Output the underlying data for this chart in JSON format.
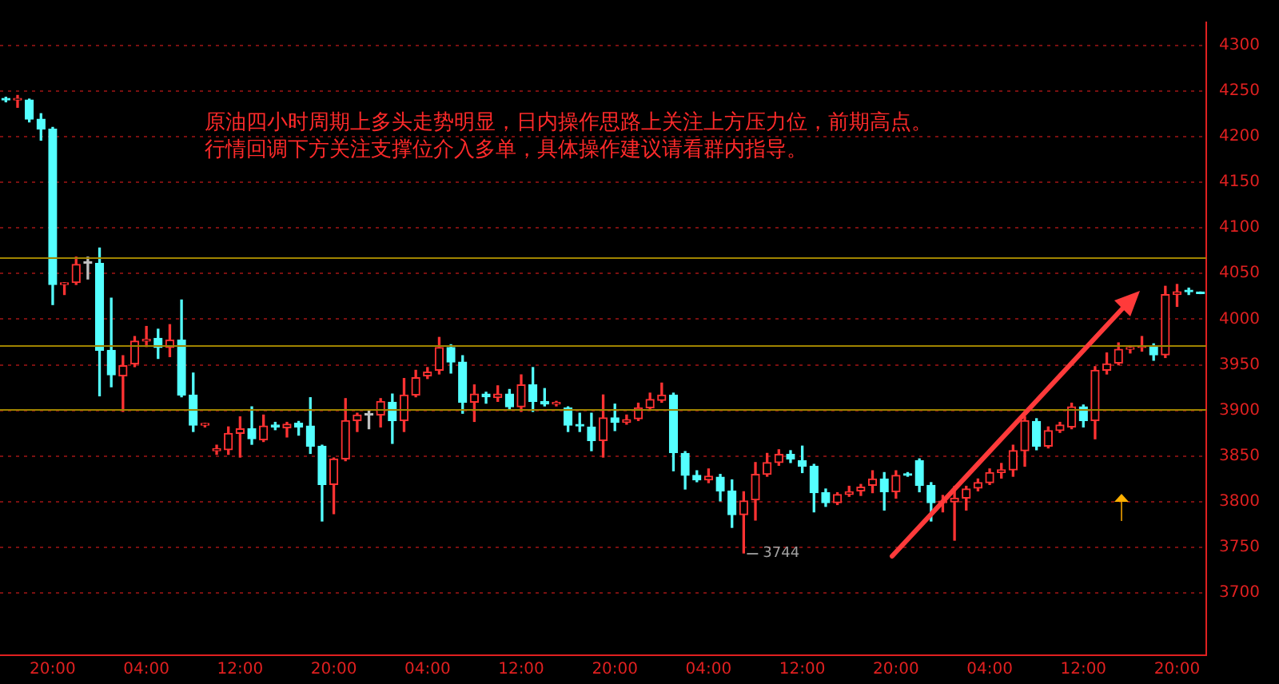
{
  "chart_data": {
    "type": "candlestick",
    "categories": [
      null,
      null,
      null,
      null,
      "20:00",
      null,
      null,
      null,
      null,
      null,
      null,
      null,
      "04:00",
      null,
      null,
      null,
      null,
      null,
      null,
      null,
      "12:00",
      null,
      null,
      null,
      null,
      null,
      null,
      null,
      "20:00",
      null,
      null,
      null,
      null,
      null,
      null,
      null,
      "04:00",
      null,
      null,
      null,
      null,
      null,
      null,
      null,
      "12:00",
      null,
      null,
      null,
      null,
      null,
      null,
      null,
      "20:00",
      null,
      null,
      null,
      null,
      null,
      null,
      null,
      "04:00",
      null,
      null,
      null,
      null,
      null,
      null,
      null,
      "12:00",
      null,
      null,
      null,
      null,
      null,
      null,
      null,
      "20:00",
      null,
      null,
      null,
      null,
      null,
      null,
      null,
      "04:00",
      null,
      null,
      null,
      null,
      null,
      null,
      null,
      "12:00",
      null,
      null,
      null,
      null,
      null,
      null,
      null,
      "20:00",
      null,
      null
    ],
    "ohlc": [
      [
        4241,
        4243,
        4238,
        4240
      ],
      [
        4240,
        4245,
        4232,
        4241
      ],
      [
        4240,
        4241,
        4216,
        4219
      ],
      [
        4219,
        4225,
        4196,
        4208
      ],
      [
        4208,
        4210,
        4016,
        4038
      ],
      [
        4038,
        4040,
        4027,
        4039
      ],
      [
        4040,
        4068,
        4038,
        4060
      ],
      [
        4061,
        4068,
        4044,
        4061
      ],
      [
        4061,
        4078,
        3916,
        3966
      ],
      [
        3966,
        4023,
        3926,
        3939
      ],
      [
        3938,
        3960,
        3899,
        3949
      ],
      [
        3951,
        3981,
        3948,
        3976
      ],
      [
        3976,
        3992,
        3970,
        3978
      ],
      [
        3979,
        3989,
        3957,
        3969
      ],
      [
        3969,
        3994,
        3959,
        3977
      ],
      [
        3977,
        4021,
        3915,
        3917
      ],
      [
        3917,
        3941,
        3877,
        3884
      ],
      [
        3884,
        3886,
        3882,
        3885
      ],
      [
        3856,
        3862,
        3852,
        3858
      ],
      [
        3857,
        3882,
        3852,
        3875
      ],
      [
        3875,
        3893,
        3849,
        3880
      ],
      [
        3880,
        3904,
        3863,
        3869
      ],
      [
        3868,
        3895,
        3866,
        3883
      ],
      [
        3884,
        3887,
        3879,
        3882
      ],
      [
        3881,
        3887,
        3871,
        3885
      ],
      [
        3886,
        3888,
        3873,
        3882
      ],
      [
        3883,
        3914,
        3853,
        3861
      ],
      [
        3861,
        3862,
        3779,
        3819
      ],
      [
        3819,
        3848,
        3787,
        3847
      ],
      [
        3847,
        3913,
        3845,
        3889
      ],
      [
        3889,
        3897,
        3877,
        3895
      ],
      [
        3895,
        3900,
        3880,
        3895
      ],
      [
        3895,
        3913,
        3882,
        3910
      ],
      [
        3909,
        3918,
        3864,
        3889
      ],
      [
        3889,
        3935,
        3877,
        3917
      ],
      [
        3917,
        3944,
        3915,
        3936
      ],
      [
        3938,
        3947,
        3935,
        3942
      ],
      [
        3944,
        3980,
        3940,
        3969
      ],
      [
        3969,
        3972,
        3941,
        3953
      ],
      [
        3953,
        3960,
        3897,
        3909
      ],
      [
        3909,
        3928,
        3888,
        3918
      ],
      [
        3918,
        3920,
        3908,
        3915
      ],
      [
        3914,
        3927,
        3910,
        3918
      ],
      [
        3918,
        3923,
        3902,
        3904
      ],
      [
        3904,
        3939,
        3899,
        3928
      ],
      [
        3928,
        3947,
        3899,
        3910
      ],
      [
        3910,
        3924,
        3905,
        3907
      ],
      [
        3907,
        3910,
        3905,
        3908
      ],
      [
        3903,
        3904,
        3877,
        3884
      ],
      [
        3884,
        3897,
        3877,
        3883
      ],
      [
        3882,
        3897,
        3856,
        3867
      ],
      [
        3867,
        3917,
        3849,
        3892
      ],
      [
        3892,
        3907,
        3878,
        3887
      ],
      [
        3887,
        3895,
        3885,
        3890
      ],
      [
        3891,
        3908,
        3889,
        3903
      ],
      [
        3903,
        3919,
        3901,
        3912
      ],
      [
        3911,
        3930,
        3909,
        3917
      ],
      [
        3917,
        3919,
        3834,
        3854
      ],
      [
        3853,
        3855,
        3814,
        3829
      ],
      [
        3829,
        3834,
        3822,
        3824
      ],
      [
        3824,
        3836,
        3821,
        3828
      ],
      [
        3827,
        3830,
        3801,
        3812
      ],
      [
        3812,
        3824,
        3772,
        3786
      ],
      [
        3786,
        3811,
        3744,
        3801
      ],
      [
        3802,
        3843,
        3780,
        3830
      ],
      [
        3830,
        3853,
        3828,
        3843
      ],
      [
        3843,
        3857,
        3840,
        3852
      ],
      [
        3852,
        3856,
        3843,
        3847
      ],
      [
        3845,
        3861,
        3832,
        3839
      ],
      [
        3839,
        3841,
        3789,
        3810
      ],
      [
        3810,
        3814,
        3795,
        3799
      ],
      [
        3799,
        3810,
        3797,
        3808
      ],
      [
        3808,
        3817,
        3806,
        3811
      ],
      [
        3812,
        3819,
        3807,
        3816
      ],
      [
        3818,
        3834,
        3810,
        3825
      ],
      [
        3825,
        3832,
        3791,
        3811
      ],
      [
        3811,
        3834,
        3804,
        3829
      ],
      [
        3830,
        3832,
        3828,
        3829
      ],
      [
        3845,
        3847,
        3811,
        3818
      ],
      [
        3818,
        3821,
        3779,
        3799
      ],
      [
        3799,
        3807,
        3789,
        3800
      ],
      [
        3800,
        3817,
        3758,
        3804
      ],
      [
        3804,
        3817,
        3791,
        3814
      ],
      [
        3815,
        3825,
        3812,
        3821
      ],
      [
        3821,
        3836,
        3819,
        3832
      ],
      [
        3832,
        3842,
        3826,
        3835
      ],
      [
        3835,
        3862,
        3828,
        3856
      ],
      [
        3856,
        3893,
        3839,
        3889
      ],
      [
        3888,
        3891,
        3857,
        3861
      ],
      [
        3861,
        3882,
        3859,
        3878
      ],
      [
        3878,
        3887,
        3876,
        3884
      ],
      [
        3882,
        3908,
        3880,
        3904
      ],
      [
        3904,
        3906,
        3882,
        3889
      ],
      [
        3889,
        3948,
        3869,
        3944
      ],
      [
        3944,
        3963,
        3940,
        3951
      ],
      [
        3952,
        3974,
        3950,
        3967
      ],
      [
        3967,
        3971,
        3963,
        3969
      ],
      [
        3969,
        3981,
        3965,
        3971
      ],
      [
        3971,
        3973,
        3955,
        3961
      ],
      [
        3961,
        4036,
        3958,
        4027
      ],
      [
        4027,
        4038,
        4014,
        4030
      ],
      [
        4031,
        4034,
        4027,
        4030
      ],
      [
        4029,
        4029,
        4028,
        4028
      ]
    ],
    "colors": [
      "#54ffff",
      "#ff3232",
      "#54ffff",
      "#54ffff",
      "#54ffff",
      "#ff3232",
      "#ff3232",
      "#c0c0c0",
      "#54ffff",
      "#54ffff",
      "#ff3232",
      "#ff3232",
      "#ff3232",
      "#54ffff",
      "#ff3232",
      "#54ffff",
      "#54ffff",
      "#ff3232",
      "#ff3232",
      "#ff3232",
      "#ff3232",
      "#54ffff",
      "#ff3232",
      "#54ffff",
      "#ff3232",
      "#54ffff",
      "#54ffff",
      "#54ffff",
      "#ff3232",
      "#ff3232",
      "#ff3232",
      "#c0c0c0",
      "#ff3232",
      "#54ffff",
      "#ff3232",
      "#ff3232",
      "#ff3232",
      "#ff3232",
      "#54ffff",
      "#54ffff",
      "#ff3232",
      "#54ffff",
      "#ff3232",
      "#54ffff",
      "#ff3232",
      "#54ffff",
      "#54ffff",
      "#ff3232",
      "#54ffff",
      "#54ffff",
      "#54ffff",
      "#ff3232",
      "#54ffff",
      "#ff3232",
      "#ff3232",
      "#ff3232",
      "#ff3232",
      "#54ffff",
      "#54ffff",
      "#54ffff",
      "#ff3232",
      "#54ffff",
      "#54ffff",
      "#ff3232",
      "#ff3232",
      "#ff3232",
      "#ff3232",
      "#54ffff",
      "#54ffff",
      "#54ffff",
      "#54ffff",
      "#ff3232",
      "#ff3232",
      "#ff3232",
      "#ff3232",
      "#54ffff",
      "#ff3232",
      "#54ffff",
      "#54ffff",
      "#54ffff",
      "#ff3232",
      "#ff3232",
      "#ff3232",
      "#ff3232",
      "#ff3232",
      "#ff3232",
      "#ff3232",
      "#ff3232",
      "#54ffff",
      "#ff3232",
      "#ff3232",
      "#ff3232",
      "#54ffff",
      "#ff3232",
      "#ff3232",
      "#ff3232",
      "#ff3232",
      "#ff3232",
      "#54ffff",
      "#ff3232",
      "#ff3232",
      "#54ffff",
      "#54ffff"
    ],
    "ylim": [
      3632,
      4325
    ],
    "yticks": [
      3700,
      3750,
      3800,
      3850,
      3900,
      3950,
      4000,
      4050,
      4100,
      4150,
      4200,
      4250,
      4300
    ],
    "grid": "y",
    "ref_lines": [
      {
        "axis": "y",
        "value": 4068,
        "color": "#a08400"
      },
      {
        "axis": "y",
        "value": 3971,
        "color": "#a08400"
      },
      {
        "axis": "y",
        "value": 3902,
        "color": "#a08400"
      }
    ],
    "annotations": [
      "原油四小时周期上多头走势明显，日内操作思路上关注上方压力位，前期高点。",
      "行情回调下方关注支撑位介入多单，具体操作建议请看群内指导。",
      "3744"
    ]
  }
}
